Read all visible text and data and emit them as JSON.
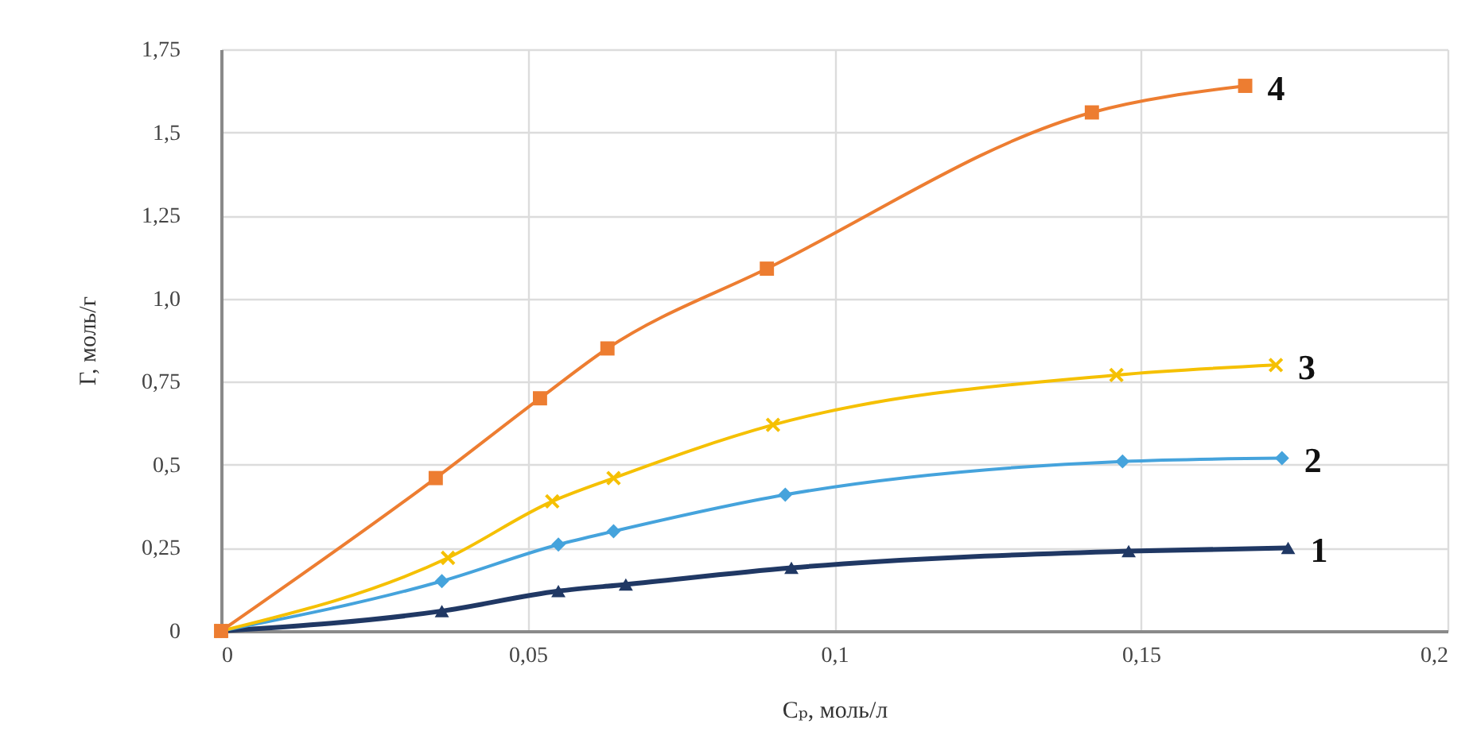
{
  "chart_data": {
    "type": "line",
    "xlabel": "Cₚ, моль/л",
    "ylabel": "Г, моль/г",
    "xlim": [
      0,
      0.2
    ],
    "xticks": [
      0,
      {
        "value": 0.05,
        "label": "0,05"
      },
      {
        "value": 0.1,
        "label": "0,1"
      },
      {
        "value": 0.15,
        "label": "0,15"
      },
      {
        "value": 0.2,
        "label": "0,2"
      }
    ],
    "ylim": [
      0,
      1.75
    ],
    "yticks": [
      0,
      {
        "value": 0.25,
        "label": "0,25"
      },
      {
        "value": 0.5,
        "label": "0,5"
      },
      {
        "value": 0.75,
        "label": "0,75"
      },
      {
        "value": 1,
        "label": "1,0"
      },
      {
        "value": 1.25,
        "label": "1,25"
      },
      {
        "value": 1.5,
        "label": "1,5"
      },
      {
        "value": 1.75,
        "label": "1,75"
      }
    ],
    "grid": true,
    "legend": false,
    "series": [
      {
        "name": "1",
        "color": "#203864",
        "marker": "triangle",
        "x": [
          0,
          0.036,
          0.055,
          0.066,
          0.093,
          0.148,
          0.174
        ],
        "values": [
          0,
          0.06,
          0.12,
          0.14,
          0.19,
          0.24,
          0.25
        ]
      },
      {
        "name": "2",
        "color": "#45a3dc",
        "marker": "diamond",
        "x": [
          0,
          0.036,
          0.055,
          0.064,
          0.092,
          0.147,
          0.173
        ],
        "values": [
          0,
          0.15,
          0.26,
          0.3,
          0.41,
          0.51,
          0.52
        ]
      },
      {
        "name": "3",
        "color": "#f5c000",
        "marker": "cross",
        "x": [
          0,
          0.037,
          0.054,
          0.064,
          0.09,
          0.146,
          0.172
        ],
        "values": [
          0,
          0.22,
          0.39,
          0.46,
          0.62,
          0.77,
          0.8
        ]
      },
      {
        "name": "4",
        "color": "#ed7d31",
        "marker": "square",
        "x": [
          0,
          0.035,
          0.052,
          0.063,
          0.089,
          0.142,
          0.167
        ],
        "values": [
          0,
          0.46,
          0.7,
          0.85,
          1.09,
          1.56,
          1.64
        ]
      }
    ]
  }
}
